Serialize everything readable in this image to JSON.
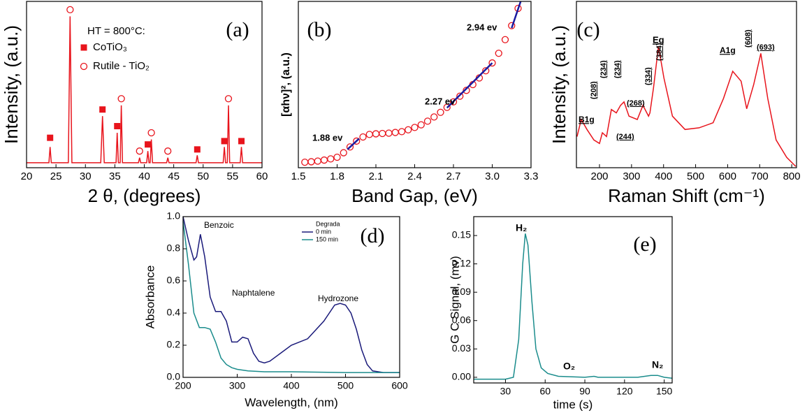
{
  "chart_data": [
    {
      "type": "line",
      "panel_label": "(a)",
      "x_label": "2 θ, (degrees)",
      "y_label": "Intensity, (a.u.)",
      "xlim": [
        20,
        60
      ],
      "xticks": [
        20,
        25,
        30,
        35,
        40,
        45,
        50,
        55,
        60
      ],
      "ylim": [
        0,
        100
      ],
      "legend_title": "HT = 800°C:",
      "series": [
        {
          "color": "#e8141c",
          "x": [
            20,
            23.8,
            24,
            24.2,
            27.1,
            27.4,
            27.7,
            32.6,
            32.9,
            33.2,
            35.2,
            35.4,
            35.6,
            35.9,
            36.1,
            36.3,
            39.0,
            39.2,
            39.4,
            40.4,
            40.6,
            40.8,
            41.0,
            41.2,
            41.4,
            43.8,
            44,
            44.2,
            48.8,
            49,
            49.2,
            53.4,
            53.6,
            53.8,
            54.1,
            54.3,
            54.5,
            56.3,
            56.5,
            56.7,
            60
          ],
          "values": [
            3,
            3,
            12.5,
            3,
            3,
            91,
            3,
            3,
            31,
            3,
            3,
            21,
            3,
            3,
            37.5,
            3,
            3,
            6,
            3,
            3,
            10,
            3,
            3,
            17,
            3,
            3,
            6,
            3,
            3,
            7.5,
            3,
            3,
            12.5,
            3,
            3,
            37.5,
            3,
            3,
            12.5,
            3,
            3
          ]
        },
        {
          "name": "CoTiO₃",
          "color": "#e8141c",
          "marker": "square",
          "line": false,
          "x": [
            24,
            32.9,
            35.4,
            40.6,
            49,
            53.6,
            56.5
          ],
          "values": [
            18,
            35,
            25,
            14,
            11,
            16,
            16
          ]
        },
        {
          "name": "Rutile - TiO₂",
          "color": "#e8141c",
          "marker": "circle",
          "line": false,
          "x": [
            27.4,
            36.1,
            39.2,
            41.2,
            44,
            54.3
          ],
          "values": [
            95,
            41.5,
            10,
            21,
            10,
            41.5
          ]
        }
      ]
    },
    {
      "type": "scatter",
      "panel_label": "(b)",
      "x_label": "Band Gap, (eV)",
      "y_label": "[αhν]², (a.u.)",
      "xlim": [
        1.5,
        3.3
      ],
      "xticks": [
        1.5,
        1.8,
        2.1,
        2.4,
        2.7,
        {
          "value": 3,
          "label": "3.0"
        },
        3.3
      ],
      "ylim": [
        0,
        100
      ],
      "annotations": [
        "1.88 ev",
        "2.27 ev",
        "2.94 ev"
      ],
      "series": [
        {
          "color": "#e8141c",
          "marker": "circle",
          "line": false,
          "x": [
            1.55,
            1.6,
            1.65,
            1.7,
            1.75,
            1.8,
            1.85,
            1.9,
            1.95,
            2.0,
            2.05,
            2.1,
            2.15,
            2.2,
            2.25,
            2.3,
            2.35,
            2.4,
            2.45,
            2.5,
            2.55,
            2.6,
            2.65,
            2.7,
            2.75,
            2.8,
            2.85,
            2.9,
            2.95,
            3.0,
            3.05,
            3.1,
            3.15,
            3.2
          ],
          "values": [
            3.3,
            3.6,
            4,
            4.6,
            5.3,
            6.3,
            9,
            12.5,
            16,
            18.5,
            20,
            20.4,
            20.6,
            20.8,
            21.2,
            21.7,
            22.8,
            24.2,
            25.8,
            28,
            30.5,
            33.3,
            36.3,
            39.6,
            43,
            46.5,
            50,
            54,
            58.3,
            63,
            68.8,
            77,
            85.4,
            95.8
          ]
        },
        {
          "color": "#1a1aa0",
          "x": [
            1.88,
            1.97
          ],
          "values": [
            11,
            17.5
          ]
        },
        {
          "color": "#1a1aa0",
          "x": [
            2.65,
            3.0
          ],
          "values": [
            36,
            63
          ]
        },
        {
          "color": "#1a1aa0",
          "x": [
            3.15,
            3.22
          ],
          "values": [
            84,
            100
          ]
        }
      ]
    },
    {
      "type": "line",
      "panel_label": "(c)",
      "x_label": "Raman Shift (cm⁻¹)",
      "y_label": "Intensity, (a.u.)",
      "xlim": [
        128,
        815
      ],
      "xticks": [
        200,
        300,
        400,
        500,
        600,
        700,
        800
      ],
      "ylim": [
        0,
        100
      ],
      "annotations": [
        "B1g",
        "(208)",
        "(234)",
        "(234)",
        "(268)",
        "(244)",
        "(334)",
        "(384)",
        "Eg",
        "A1g",
        "(608)",
        "(693)"
      ],
      "series": [
        {
          "color": "#e8141c",
          "x": [
            130,
            143,
            161,
            182.5,
            200,
            209,
            222,
            237,
            252.5,
            265.6,
            276.6,
            292,
            318,
            335.7,
            353,
            357.5,
            368.5,
            384,
            401,
            427.6,
            467,
            510.7,
            554.5,
            587,
            615.8,
            642,
            659.5,
            681.4,
            703.5,
            725.2,
            751.4,
            784.2,
            812.7
          ],
          "values": [
            18.75,
            29,
            23,
            16.7,
            14.6,
            21,
            18.75,
            35,
            33,
            37.5,
            39.6,
            31,
            29,
            37.5,
            31,
            33,
            48,
            73,
            54,
            31,
            23,
            24,
            27,
            41.7,
            58,
            52,
            35.4,
            50,
            68.75,
            41.7,
            16.7,
            6.25,
            0.8
          ]
        }
      ]
    },
    {
      "type": "line",
      "panel_label": "(d)",
      "x_label": "Wavelength, (nm)",
      "y_label": "Absorbance",
      "xlim": [
        200,
        600
      ],
      "xticks": [
        200,
        300,
        400,
        500,
        600
      ],
      "ylim": [
        0,
        1
      ],
      "yticks": [
        {
          "value": 0,
          "label": "0.0"
        },
        0.2,
        0.4,
        0.6,
        0.8,
        {
          "value": 1,
          "label": "1.0"
        }
      ],
      "legend_title": "Degrada",
      "annotations": [
        "Benzoic",
        "Naphtalene",
        "Hydrozone"
      ],
      "series": [
        {
          "name": "0 min",
          "color": "#1a1a7a",
          "x": [
            200,
            210,
            220,
            225,
            232,
            240,
            250,
            260,
            270,
            280,
            290,
            300,
            310,
            320,
            330,
            340,
            350,
            360,
            380,
            400,
            430,
            460,
            480,
            490,
            500,
            510,
            520,
            530,
            540,
            550,
            570,
            600
          ],
          "values": [
            1.0,
            0.85,
            0.73,
            0.75,
            0.89,
            0.75,
            0.5,
            0.41,
            0.41,
            0.35,
            0.22,
            0.22,
            0.25,
            0.24,
            0.15,
            0.1,
            0.09,
            0.1,
            0.15,
            0.2,
            0.24,
            0.35,
            0.45,
            0.46,
            0.45,
            0.4,
            0.3,
            0.17,
            0.08,
            0.04,
            0.03,
            0.03
          ]
        },
        {
          "name": "150 min",
          "color": "#1a8c8c",
          "x": [
            200,
            210,
            220,
            230,
            240,
            250,
            260,
            270,
            280,
            290,
            300,
            320,
            350,
            400,
            500,
            600
          ],
          "values": [
            0.97,
            0.7,
            0.4,
            0.31,
            0.31,
            0.3,
            0.22,
            0.12,
            0.08,
            0.06,
            0.05,
            0.04,
            0.035,
            0.035,
            0.03,
            0.03
          ]
        }
      ]
    },
    {
      "type": "line",
      "panel_label": "(e)",
      "x_label": "time (s)",
      "y_label": "G C Signal, (mv)",
      "xlim": [
        6,
        156
      ],
      "xticks": [
        30,
        60,
        90,
        120,
        150
      ],
      "ylim": [
        -0.006,
        0.17
      ],
      "yticks": [
        {
          "value": 0,
          "label": "0.00"
        },
        0.03,
        0.06,
        0.09,
        0.12,
        0.15
      ],
      "annotations": [
        "H₂",
        "O₂",
        "N₂"
      ],
      "series": [
        {
          "color": "#1a8c8c",
          "x": [
            6,
            30,
            36,
            40,
            43,
            45,
            47,
            50,
            53,
            57,
            62,
            70,
            90,
            97,
            100,
            110,
            130,
            140,
            145,
            150,
            156
          ],
          "values": [
            -0.002,
            -0.002,
            0.0,
            0.04,
            0.12,
            0.152,
            0.14,
            0.08,
            0.03,
            0.01,
            0.004,
            0.001,
            0.0,
            0.001,
            0.0,
            0.0,
            0.0,
            0.002,
            0.002,
            0.0,
            -0.001
          ]
        }
      ]
    }
  ]
}
